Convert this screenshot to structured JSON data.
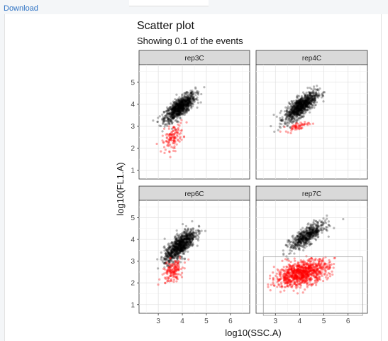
{
  "toolbar": {
    "download_label": "Download"
  },
  "colors": {
    "outlier": "#ff0000",
    "event": "#000000",
    "strip": "#d9d9d9",
    "link": "#2f73c4"
  },
  "chart_data": {
    "type": "scatter",
    "title": "Scatter plot",
    "subtitle": "Showing  0.1 of the events",
    "xlabel": "log10(SSC.A)",
    "ylabel": "log10(FL1.A)",
    "xlim": [
      2.2,
      6.8
    ],
    "ylim": [
      0.6,
      5.8
    ],
    "x_ticks": [
      3,
      4,
      5,
      6
    ],
    "y_ticks": [
      1,
      2,
      3,
      4,
      5
    ],
    "grid": true,
    "facets": [
      {
        "label": "rep3C",
        "main": {
          "cx": 3.9,
          "cy": 3.85,
          "sx": 0.32,
          "sy": 0.32,
          "n": 900
        },
        "red": {
          "cx": 3.6,
          "cy": 2.5,
          "sx": 0.22,
          "sy": 0.3,
          "n": 120
        },
        "gate": null
      },
      {
        "label": "rep4C",
        "main": {
          "cx": 4.05,
          "cy": 3.9,
          "sx": 0.33,
          "sy": 0.33,
          "n": 900
        },
        "red": {
          "cx": 3.9,
          "cy": 3.0,
          "sx": 0.25,
          "sy": 0.1,
          "n": 60
        },
        "gate": null
      },
      {
        "label": "rep6C",
        "main": {
          "cx": 3.9,
          "cy": 3.7,
          "sx": 0.32,
          "sy": 0.38,
          "n": 900
        },
        "red": {
          "cx": 3.6,
          "cy": 2.55,
          "sx": 0.22,
          "sy": 0.28,
          "n": 150
        },
        "gate": null
      },
      {
        "label": "rep7C",
        "main": {
          "cx": 4.3,
          "cy": 4.15,
          "sx": 0.35,
          "sy": 0.3,
          "n": 550
        },
        "red": {
          "cx": 4.1,
          "cy": 2.45,
          "sx": 0.55,
          "sy": 0.3,
          "n": 900
        },
        "gate": {
          "x0": 2.5,
          "x1": 6.6,
          "y0": 0.5,
          "y1": 3.2
        }
      }
    ]
  }
}
